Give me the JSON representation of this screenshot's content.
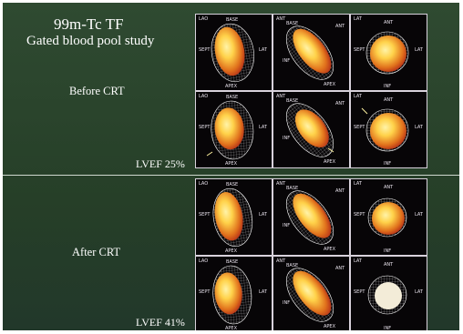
{
  "title": {
    "line1": "99m-Tc  TF",
    "line2": "Gated blood pool study"
  },
  "sections": [
    {
      "label": "Before CRT",
      "lvef": "LVEF 25%"
    },
    {
      "label": "After CRT",
      "lvef": "LVEF 41%"
    }
  ],
  "colors": {
    "background": "#2b452d",
    "panel": "#070507",
    "divider": "#cfd8cf",
    "heart_core": "#ffd24a",
    "heart_edge": "#b02a18"
  },
  "panel_labels": {
    "base": "BASE",
    "apex": "APEX",
    "sept": "SEPT",
    "lat": "LAT",
    "ant": "ANT",
    "inf": "INF",
    "tag_lao": "LAO",
    "tag_ant": "ANT",
    "tag_lat": "LAT"
  },
  "panels": [
    {
      "view": "lao",
      "row": 0
    },
    {
      "view": "ant",
      "row": 0
    },
    {
      "view": "apex",
      "row": 0
    },
    {
      "view": "lao",
      "row": 1
    },
    {
      "view": "ant",
      "row": 1
    },
    {
      "view": "apex",
      "row": 1
    },
    {
      "view": "lao",
      "row": 2
    },
    {
      "view": "ant",
      "row": 2
    },
    {
      "view": "apex",
      "row": 2
    },
    {
      "view": "lao",
      "row": 3
    },
    {
      "view": "ant",
      "row": 3
    },
    {
      "view": "apex",
      "row": 3
    }
  ]
}
